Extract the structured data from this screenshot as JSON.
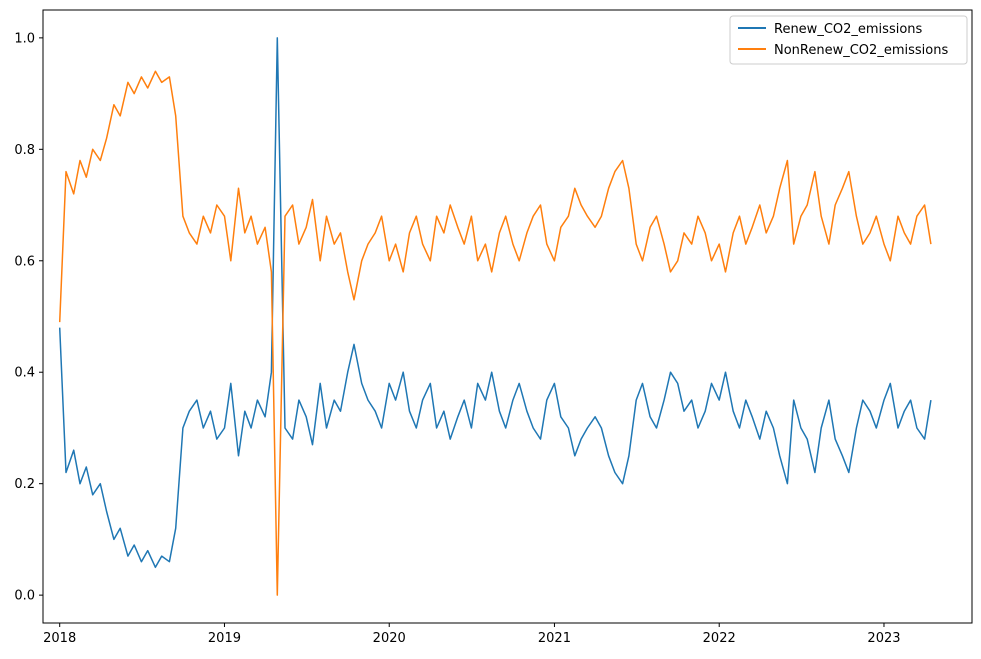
{
  "chart_data": {
    "type": "line",
    "title": "",
    "xlabel": "",
    "ylabel": "",
    "xlim": [
      "2017-11-25",
      "2023-07-15"
    ],
    "ylim": [
      -0.05,
      1.05
    ],
    "x_ticks": [
      "2018",
      "2019",
      "2020",
      "2021",
      "2022",
      "2023"
    ],
    "y_ticks": [
      "0.0",
      "0.2",
      "0.4",
      "0.6",
      "0.8",
      "1.0"
    ],
    "grid": false,
    "legend_position": "top-right",
    "series": [
      {
        "name": "Renew_CO2_emissions",
        "color": "#1f77b4",
        "x": [
          "2018-01-01",
          "2018-01-15",
          "2018-02-01",
          "2018-02-15",
          "2018-03-01",
          "2018-03-15",
          "2018-04-01",
          "2018-04-15",
          "2018-05-01",
          "2018-05-15",
          "2018-06-01",
          "2018-06-15",
          "2018-07-01",
          "2018-07-15",
          "2018-08-01",
          "2018-08-15",
          "2018-09-01",
          "2018-09-15",
          "2018-10-01",
          "2018-10-15",
          "2018-11-01",
          "2018-11-15",
          "2018-12-01",
          "2018-12-15",
          "2019-01-01",
          "2019-01-15",
          "2019-02-01",
          "2019-02-15",
          "2019-03-01",
          "2019-03-15",
          "2019-04-01",
          "2019-04-15",
          "2019-04-28",
          "2019-05-15",
          "2019-06-01",
          "2019-06-15",
          "2019-07-01",
          "2019-07-15",
          "2019-08-01",
          "2019-08-15",
          "2019-09-01",
          "2019-09-15",
          "2019-10-01",
          "2019-10-15",
          "2019-11-01",
          "2019-11-15",
          "2019-12-01",
          "2019-12-15",
          "2020-01-01",
          "2020-01-15",
          "2020-02-01",
          "2020-02-15",
          "2020-03-01",
          "2020-03-15",
          "2020-04-01",
          "2020-04-15",
          "2020-05-01",
          "2020-05-15",
          "2020-06-01",
          "2020-06-15",
          "2020-07-01",
          "2020-07-15",
          "2020-08-01",
          "2020-08-15",
          "2020-09-01",
          "2020-09-15",
          "2020-10-01",
          "2020-10-15",
          "2020-11-01",
          "2020-11-15",
          "2020-12-01",
          "2020-12-15",
          "2021-01-01",
          "2021-01-15",
          "2021-02-01",
          "2021-02-15",
          "2021-03-01",
          "2021-03-15",
          "2021-04-01",
          "2021-04-15",
          "2021-05-01",
          "2021-05-15",
          "2021-06-01",
          "2021-06-15",
          "2021-07-01",
          "2021-07-15",
          "2021-08-01",
          "2021-08-15",
          "2021-09-01",
          "2021-09-15",
          "2021-10-01",
          "2021-10-15",
          "2021-11-01",
          "2021-11-15",
          "2021-12-01",
          "2021-12-15",
          "2022-01-01",
          "2022-01-15",
          "2022-02-01",
          "2022-02-15",
          "2022-03-01",
          "2022-03-15",
          "2022-04-01",
          "2022-04-15",
          "2022-05-01",
          "2022-05-15",
          "2022-06-01",
          "2022-06-15",
          "2022-07-01",
          "2022-07-15",
          "2022-08-01",
          "2022-08-15",
          "2022-09-01",
          "2022-09-15",
          "2022-10-01",
          "2022-10-15",
          "2022-11-01",
          "2022-11-15",
          "2022-12-01",
          "2022-12-15",
          "2023-01-01",
          "2023-01-15",
          "2023-02-01",
          "2023-02-15",
          "2023-03-01",
          "2023-03-15",
          "2023-04-01",
          "2023-04-15"
        ],
        "y": [
          0.48,
          0.22,
          0.26,
          0.2,
          0.23,
          0.18,
          0.2,
          0.15,
          0.1,
          0.12,
          0.07,
          0.09,
          0.06,
          0.08,
          0.05,
          0.07,
          0.06,
          0.12,
          0.3,
          0.33,
          0.35,
          0.3,
          0.33,
          0.28,
          0.3,
          0.38,
          0.25,
          0.33,
          0.3,
          0.35,
          0.32,
          0.4,
          1.0,
          0.3,
          0.28,
          0.35,
          0.32,
          0.27,
          0.38,
          0.3,
          0.35,
          0.33,
          0.4,
          0.45,
          0.38,
          0.35,
          0.33,
          0.3,
          0.38,
          0.35,
          0.4,
          0.33,
          0.3,
          0.35,
          0.38,
          0.3,
          0.33,
          0.28,
          0.32,
          0.35,
          0.3,
          0.38,
          0.35,
          0.4,
          0.33,
          0.3,
          0.35,
          0.38,
          0.33,
          0.3,
          0.28,
          0.35,
          0.38,
          0.32,
          0.3,
          0.25,
          0.28,
          0.3,
          0.32,
          0.3,
          0.25,
          0.22,
          0.2,
          0.25,
          0.35,
          0.38,
          0.32,
          0.3,
          0.35,
          0.4,
          0.38,
          0.33,
          0.35,
          0.3,
          0.33,
          0.38,
          0.35,
          0.4,
          0.33,
          0.3,
          0.35,
          0.32,
          0.28,
          0.33,
          0.3,
          0.25,
          0.2,
          0.35,
          0.3,
          0.28,
          0.22,
          0.3,
          0.35,
          0.28,
          0.25,
          0.22,
          0.3,
          0.35,
          0.33,
          0.3,
          0.35,
          0.38,
          0.3,
          0.33,
          0.35,
          0.3,
          0.28,
          0.35
        ]
      },
      {
        "name": "NonRenew_CO2_emissions",
        "color": "#ff7f0e",
        "x": [
          "2018-01-01",
          "2018-01-15",
          "2018-02-01",
          "2018-02-15",
          "2018-03-01",
          "2018-03-15",
          "2018-04-01",
          "2018-04-15",
          "2018-05-01",
          "2018-05-15",
          "2018-06-01",
          "2018-06-15",
          "2018-07-01",
          "2018-07-15",
          "2018-08-01",
          "2018-08-15",
          "2018-09-01",
          "2018-09-15",
          "2018-10-01",
          "2018-10-15",
          "2018-11-01",
          "2018-11-15",
          "2018-12-01",
          "2018-12-15",
          "2019-01-01",
          "2019-01-15",
          "2019-02-01",
          "2019-02-15",
          "2019-03-01",
          "2019-03-15",
          "2019-04-01",
          "2019-04-15",
          "2019-04-28",
          "2019-05-15",
          "2019-06-01",
          "2019-06-15",
          "2019-07-01",
          "2019-07-15",
          "2019-08-01",
          "2019-08-15",
          "2019-09-01",
          "2019-09-15",
          "2019-10-01",
          "2019-10-15",
          "2019-11-01",
          "2019-11-15",
          "2019-12-01",
          "2019-12-15",
          "2020-01-01",
          "2020-01-15",
          "2020-02-01",
          "2020-02-15",
          "2020-03-01",
          "2020-03-15",
          "2020-04-01",
          "2020-04-15",
          "2020-05-01",
          "2020-05-15",
          "2020-06-01",
          "2020-06-15",
          "2020-07-01",
          "2020-07-15",
          "2020-08-01",
          "2020-08-15",
          "2020-09-01",
          "2020-09-15",
          "2020-10-01",
          "2020-10-15",
          "2020-11-01",
          "2020-11-15",
          "2020-12-01",
          "2020-12-15",
          "2021-01-01",
          "2021-01-15",
          "2021-02-01",
          "2021-02-15",
          "2021-03-01",
          "2021-03-15",
          "2021-04-01",
          "2021-04-15",
          "2021-05-01",
          "2021-05-15",
          "2021-06-01",
          "2021-06-15",
          "2021-07-01",
          "2021-07-15",
          "2021-08-01",
          "2021-08-15",
          "2021-09-01",
          "2021-09-15",
          "2021-10-01",
          "2021-10-15",
          "2021-11-01",
          "2021-11-15",
          "2021-12-01",
          "2021-12-15",
          "2022-01-01",
          "2022-01-15",
          "2022-02-01",
          "2022-02-15",
          "2022-03-01",
          "2022-03-15",
          "2022-04-01",
          "2022-04-15",
          "2022-05-01",
          "2022-05-15",
          "2022-06-01",
          "2022-06-15",
          "2022-07-01",
          "2022-07-15",
          "2022-08-01",
          "2022-08-15",
          "2022-09-01",
          "2022-09-15",
          "2022-10-01",
          "2022-10-15",
          "2022-11-01",
          "2022-11-15",
          "2022-12-01",
          "2022-12-15",
          "2023-01-01",
          "2023-01-15",
          "2023-02-01",
          "2023-02-15",
          "2023-03-01",
          "2023-03-15",
          "2023-04-01",
          "2023-04-15"
        ],
        "y": [
          0.49,
          0.76,
          0.72,
          0.78,
          0.75,
          0.8,
          0.78,
          0.82,
          0.88,
          0.86,
          0.92,
          0.9,
          0.93,
          0.91,
          0.94,
          0.92,
          0.93,
          0.86,
          0.68,
          0.65,
          0.63,
          0.68,
          0.65,
          0.7,
          0.68,
          0.6,
          0.73,
          0.65,
          0.68,
          0.63,
          0.66,
          0.58,
          0.0,
          0.68,
          0.7,
          0.63,
          0.66,
          0.71,
          0.6,
          0.68,
          0.63,
          0.65,
          0.58,
          0.53,
          0.6,
          0.63,
          0.65,
          0.68,
          0.6,
          0.63,
          0.58,
          0.65,
          0.68,
          0.63,
          0.6,
          0.68,
          0.65,
          0.7,
          0.66,
          0.63,
          0.68,
          0.6,
          0.63,
          0.58,
          0.65,
          0.68,
          0.63,
          0.6,
          0.65,
          0.68,
          0.7,
          0.63,
          0.6,
          0.66,
          0.68,
          0.73,
          0.7,
          0.68,
          0.66,
          0.68,
          0.73,
          0.76,
          0.78,
          0.73,
          0.63,
          0.6,
          0.66,
          0.68,
          0.63,
          0.58,
          0.6,
          0.65,
          0.63,
          0.68,
          0.65,
          0.6,
          0.63,
          0.58,
          0.65,
          0.68,
          0.63,
          0.66,
          0.7,
          0.65,
          0.68,
          0.73,
          0.78,
          0.63,
          0.68,
          0.7,
          0.76,
          0.68,
          0.63,
          0.7,
          0.73,
          0.76,
          0.68,
          0.63,
          0.65,
          0.68,
          0.63,
          0.6,
          0.68,
          0.65,
          0.63,
          0.68,
          0.7,
          0.63
        ]
      }
    ]
  }
}
